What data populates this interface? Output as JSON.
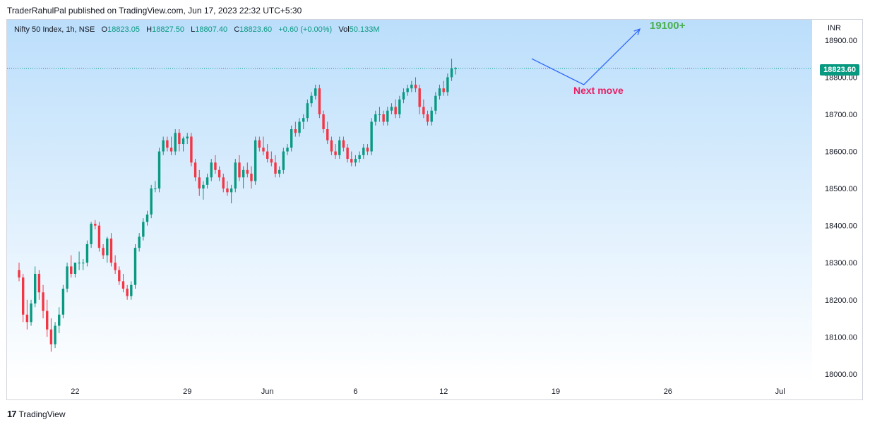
{
  "publish_line": "TraderRahulPal published on TradingView.com, Jun 17, 2023 22:32 UTC+5:30",
  "legend": {
    "symbol": "Nifty 50 Index, 1h, NSE",
    "o_label": "O",
    "o_value": "18823.05",
    "h_label": "H",
    "h_value": "18827.50",
    "l_label": "L",
    "l_value": "18807.40",
    "c_label": "C",
    "c_value": "18823.60",
    "change": "+0.60 (+0.00%)",
    "vol_label": "Vol",
    "vol_value": "50.133M"
  },
  "currency": "INR",
  "last_price": "18823.60",
  "annotations": {
    "target": "19100+",
    "next_move": "Next move"
  },
  "footer": {
    "brand": "TradingView",
    "mark": "17"
  },
  "colors": {
    "up": "#089981",
    "down": "#f23645",
    "target_arrow": "#2962ff",
    "target_text": "#4caf50",
    "next_text": "#e91e63"
  },
  "chart_data": {
    "type": "candlestick",
    "y_ticks": [
      "18900.00",
      "18800.00",
      "18700.00",
      "18600.00",
      "18500.00",
      "18400.00",
      "18300.00",
      "18200.00",
      "18100.00",
      "18000.00"
    ],
    "ylim": [
      17975,
      18955
    ],
    "x_ticks": [
      {
        "label": "22",
        "index": 14
      },
      {
        "label": "29",
        "index": 42
      },
      {
        "label": "Jun",
        "index": 62
      },
      {
        "label": "6",
        "index": 84
      },
      {
        "label": "12",
        "index": 106
      },
      {
        "label": "19",
        "index": 134
      },
      {
        "label": "26",
        "index": 162
      },
      {
        "label": "Jul",
        "index": 190
      }
    ],
    "x_range": [
      -3,
      198
    ],
    "last_price_line": 18823.6,
    "projection": [
      {
        "index": 128,
        "price": 18850
      },
      {
        "index": 141,
        "price": 18780
      },
      {
        "index": 155,
        "price": 18930
      }
    ],
    "candles": [
      [
        18280,
        18300,
        18250,
        18260
      ],
      [
        18260,
        18270,
        18140,
        18160
      ],
      [
        18160,
        18200,
        18120,
        18140
      ],
      [
        18140,
        18200,
        18130,
        18190
      ],
      [
        18190,
        18290,
        18180,
        18270
      ],
      [
        18270,
        18280,
        18200,
        18220
      ],
      [
        18220,
        18240,
        18150,
        18170
      ],
      [
        18170,
        18200,
        18100,
        18120
      ],
      [
        18120,
        18150,
        18060,
        18080
      ],
      [
        18080,
        18140,
        18070,
        18130
      ],
      [
        18130,
        18180,
        18110,
        18160
      ],
      [
        18160,
        18240,
        18150,
        18230
      ],
      [
        18230,
        18300,
        18220,
        18290
      ],
      [
        18290,
        18320,
        18260,
        18270
      ],
      [
        18270,
        18300,
        18260,
        18300
      ],
      [
        18300,
        18330,
        18280,
        18300
      ],
      [
        18300,
        18310,
        18280,
        18300
      ],
      [
        18300,
        18360,
        18290,
        18350
      ],
      [
        18350,
        18410,
        18340,
        18405
      ],
      [
        18405,
        18415,
        18390,
        18400
      ],
      [
        18400,
        18410,
        18330,
        18340
      ],
      [
        18340,
        18350,
        18310,
        18320
      ],
      [
        18320,
        18370,
        18300,
        18365
      ],
      [
        18365,
        18380,
        18290,
        18300
      ],
      [
        18300,
        18320,
        18270,
        18280
      ],
      [
        18280,
        18290,
        18240,
        18250
      ],
      [
        18250,
        18270,
        18220,
        18230
      ],
      [
        18230,
        18240,
        18200,
        18210
      ],
      [
        18210,
        18250,
        18200,
        18240
      ],
      [
        18240,
        18350,
        18230,
        18340
      ],
      [
        18340,
        18380,
        18330,
        18370
      ],
      [
        18370,
        18420,
        18360,
        18410
      ],
      [
        18410,
        18440,
        18400,
        18430
      ],
      [
        18430,
        18510,
        18420,
        18500
      ],
      [
        18500,
        18520,
        18490,
        18500
      ],
      [
        18500,
        18610,
        18490,
        18600
      ],
      [
        18600,
        18640,
        18590,
        18630
      ],
      [
        18630,
        18640,
        18600,
        18610
      ],
      [
        18610,
        18640,
        18590,
        18600
      ],
      [
        18600,
        18660,
        18590,
        18650
      ],
      [
        18650,
        18660,
        18600,
        18620
      ],
      [
        18620,
        18640,
        18600,
        18635
      ],
      [
        18635,
        18650,
        18620,
        18640
      ],
      [
        18640,
        18650,
        18560,
        18570
      ],
      [
        18570,
        18580,
        18520,
        18530
      ],
      [
        18530,
        18550,
        18480,
        18500
      ],
      [
        18500,
        18520,
        18470,
        18510
      ],
      [
        18510,
        18540,
        18500,
        18530
      ],
      [
        18530,
        18580,
        18520,
        18570
      ],
      [
        18570,
        18590,
        18540,
        18550
      ],
      [
        18550,
        18560,
        18520,
        18530
      ],
      [
        18530,
        18540,
        18490,
        18500
      ],
      [
        18500,
        18520,
        18480,
        18490
      ],
      [
        18490,
        18510,
        18460,
        18500
      ],
      [
        18500,
        18580,
        18490,
        18570
      ],
      [
        18570,
        18590,
        18520,
        18530
      ],
      [
        18530,
        18560,
        18500,
        18550
      ],
      [
        18550,
        18570,
        18530,
        18540
      ],
      [
        18540,
        18560,
        18500,
        18520
      ],
      [
        18520,
        18640,
        18510,
        18630
      ],
      [
        18630,
        18640,
        18600,
        18610
      ],
      [
        18610,
        18640,
        18590,
        18600
      ],
      [
        18600,
        18620,
        18570,
        18580
      ],
      [
        18580,
        18600,
        18560,
        18570
      ],
      [
        18570,
        18590,
        18530,
        18540
      ],
      [
        18540,
        18560,
        18530,
        18550
      ],
      [
        18550,
        18610,
        18540,
        18600
      ],
      [
        18600,
        18620,
        18590,
        18610
      ],
      [
        18610,
        18670,
        18600,
        18660
      ],
      [
        18660,
        18680,
        18640,
        18650
      ],
      [
        18650,
        18690,
        18640,
        18680
      ],
      [
        18680,
        18700,
        18660,
        18690
      ],
      [
        18690,
        18740,
        18680,
        18730
      ],
      [
        18730,
        18760,
        18720,
        18750
      ],
      [
        18750,
        18780,
        18740,
        18770
      ],
      [
        18770,
        18780,
        18690,
        18700
      ],
      [
        18700,
        18710,
        18650,
        18660
      ],
      [
        18660,
        18680,
        18620,
        18630
      ],
      [
        18630,
        18640,
        18590,
        18600
      ],
      [
        18600,
        18620,
        18580,
        18590
      ],
      [
        18590,
        18640,
        18580,
        18630
      ],
      [
        18630,
        18640,
        18600,
        18610
      ],
      [
        18610,
        18620,
        18570,
        18580
      ],
      [
        18580,
        18600,
        18560,
        18570
      ],
      [
        18570,
        18590,
        18560,
        18580
      ],
      [
        18580,
        18600,
        18570,
        18590
      ],
      [
        18590,
        18620,
        18580,
        18610
      ],
      [
        18610,
        18620,
        18590,
        18600
      ],
      [
        18600,
        18690,
        18590,
        18680
      ],
      [
        18680,
        18710,
        18670,
        18700
      ],
      [
        18700,
        18720,
        18680,
        18700
      ],
      [
        18700,
        18710,
        18670,
        18680
      ],
      [
        18680,
        18720,
        18670,
        18710
      ],
      [
        18710,
        18730,
        18700,
        18720
      ],
      [
        18720,
        18740,
        18690,
        18700
      ],
      [
        18700,
        18750,
        18690,
        18740
      ],
      [
        18740,
        18770,
        18730,
        18760
      ],
      [
        18760,
        18780,
        18750,
        18770
      ],
      [
        18770,
        18790,
        18760,
        18780
      ],
      [
        18780,
        18800,
        18760,
        18770
      ],
      [
        18770,
        18780,
        18700,
        18720
      ],
      [
        18720,
        18740,
        18690,
        18700
      ],
      [
        18700,
        18710,
        18670,
        18680
      ],
      [
        18680,
        18720,
        18670,
        18710
      ],
      [
        18710,
        18760,
        18700,
        18750
      ],
      [
        18750,
        18780,
        18740,
        18770
      ],
      [
        18770,
        18790,
        18750,
        18760
      ],
      [
        18760,
        18810,
        18750,
        18800
      ],
      [
        18800,
        18850,
        18790,
        18823.05
      ],
      [
        18823.05,
        18827.5,
        18807.4,
        18823.6
      ]
    ]
  }
}
